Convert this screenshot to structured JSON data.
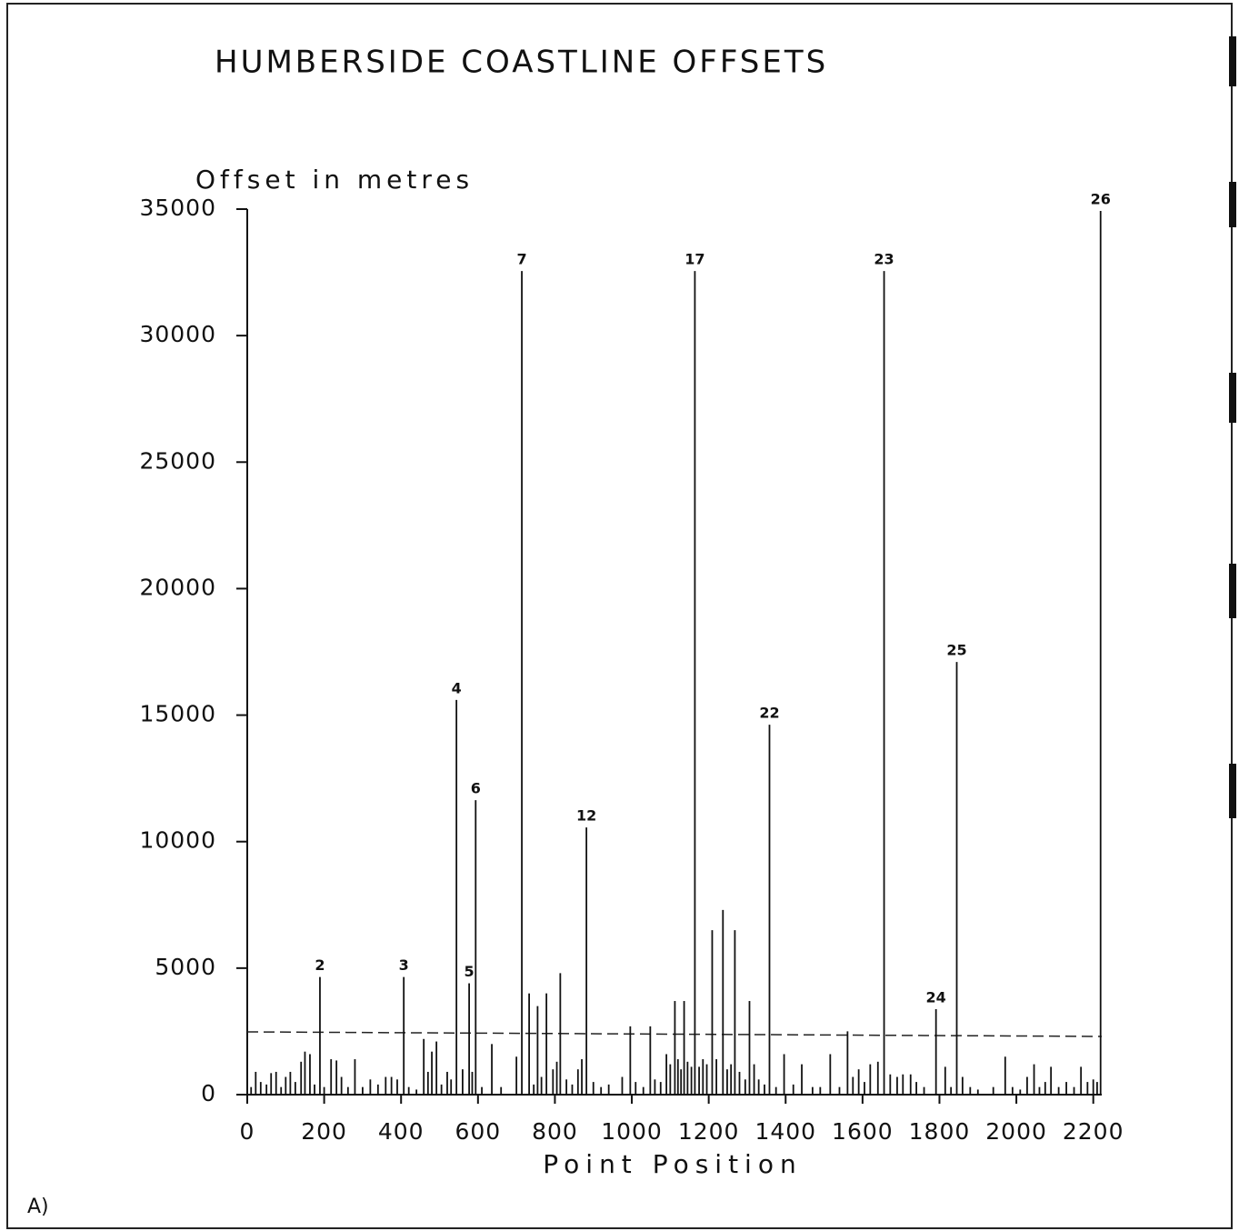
{
  "chart_data": {
    "type": "spike",
    "title": "HUMBERSIDE COASTLINE OFFSETS",
    "y_label": "Offset in metres",
    "x_label": "Point Position",
    "panel_label": "A)",
    "color": "#111111",
    "xlim": [
      0,
      2222
    ],
    "ylim": [
      0,
      35000
    ],
    "xticks": [
      0,
      200,
      400,
      600,
      800,
      1000,
      1200,
      1400,
      1600,
      1800,
      2000,
      2200
    ],
    "yticks": [
      0,
      5000,
      10000,
      15000,
      20000,
      25000,
      30000,
      35000
    ],
    "threshold": {
      "x": [
        0,
        2222
      ],
      "values": [
        2480,
        2300
      ],
      "color": "#222222"
    },
    "points": [
      {
        "x": 10,
        "value": 300
      },
      {
        "x": 22,
        "value": 900
      },
      {
        "x": 35,
        "value": 500
      },
      {
        "x": 50,
        "value": 400
      },
      {
        "x": 62,
        "value": 850
      },
      {
        "x": 75,
        "value": 900
      },
      {
        "x": 88,
        "value": 300
      },
      {
        "x": 100,
        "value": 700
      },
      {
        "x": 112,
        "value": 900
      },
      {
        "x": 125,
        "value": 500
      },
      {
        "x": 140,
        "value": 1300
      },
      {
        "x": 150,
        "value": 1700
      },
      {
        "x": 163,
        "value": 1600
      },
      {
        "x": 175,
        "value": 400
      },
      {
        "x": 189,
        "value": 4650,
        "label": "2"
      },
      {
        "x": 200,
        "value": 300
      },
      {
        "x": 218,
        "value": 1400
      },
      {
        "x": 232,
        "value": 1350
      },
      {
        "x": 245,
        "value": 700
      },
      {
        "x": 262,
        "value": 300
      },
      {
        "x": 280,
        "value": 1400
      },
      {
        "x": 300,
        "value": 300
      },
      {
        "x": 320,
        "value": 600
      },
      {
        "x": 340,
        "value": 400
      },
      {
        "x": 360,
        "value": 700
      },
      {
        "x": 375,
        "value": 700
      },
      {
        "x": 390,
        "value": 600
      },
      {
        "x": 407,
        "value": 4650,
        "label": "3"
      },
      {
        "x": 420,
        "value": 300
      },
      {
        "x": 440,
        "value": 200
      },
      {
        "x": 459,
        "value": 2200
      },
      {
        "x": 470,
        "value": 900
      },
      {
        "x": 480,
        "value": 1700
      },
      {
        "x": 492,
        "value": 2100
      },
      {
        "x": 505,
        "value": 400
      },
      {
        "x": 520,
        "value": 900
      },
      {
        "x": 530,
        "value": 600
      },
      {
        "x": 544,
        "value": 15600,
        "label": "4"
      },
      {
        "x": 560,
        "value": 1000
      },
      {
        "x": 577,
        "value": 4400,
        "label": "5"
      },
      {
        "x": 585,
        "value": 900
      },
      {
        "x": 594,
        "value": 11640,
        "label": "6"
      },
      {
        "x": 610,
        "value": 300
      },
      {
        "x": 636,
        "value": 2000
      },
      {
        "x": 660,
        "value": 300
      },
      {
        "x": 700,
        "value": 1500
      },
      {
        "x": 714,
        "value": 32550,
        "label": "7"
      },
      {
        "x": 733,
        "value": 4000
      },
      {
        "x": 745,
        "value": 400
      },
      {
        "x": 755,
        "value": 3500
      },
      {
        "x": 765,
        "value": 700
      },
      {
        "x": 778,
        "value": 4000
      },
      {
        "x": 795,
        "value": 1000
      },
      {
        "x": 805,
        "value": 1300
      },
      {
        "x": 814,
        "value": 4800
      },
      {
        "x": 830,
        "value": 600
      },
      {
        "x": 845,
        "value": 400
      },
      {
        "x": 860,
        "value": 1000
      },
      {
        "x": 870,
        "value": 1400
      },
      {
        "x": 882,
        "value": 10560,
        "label": "12"
      },
      {
        "x": 900,
        "value": 500
      },
      {
        "x": 920,
        "value": 300
      },
      {
        "x": 940,
        "value": 400
      },
      {
        "x": 975,
        "value": 700
      },
      {
        "x": 996,
        "value": 2700
      },
      {
        "x": 1010,
        "value": 500
      },
      {
        "x": 1030,
        "value": 300
      },
      {
        "x": 1048,
        "value": 2700
      },
      {
        "x": 1060,
        "value": 600
      },
      {
        "x": 1075,
        "value": 500
      },
      {
        "x": 1090,
        "value": 1600
      },
      {
        "x": 1100,
        "value": 1200
      },
      {
        "x": 1112,
        "value": 3700
      },
      {
        "x": 1120,
        "value": 1400
      },
      {
        "x": 1128,
        "value": 1000
      },
      {
        "x": 1136,
        "value": 3700
      },
      {
        "x": 1145,
        "value": 1300
      },
      {
        "x": 1155,
        "value": 1100
      },
      {
        "x": 1164,
        "value": 32550,
        "label": "17"
      },
      {
        "x": 1175,
        "value": 1100
      },
      {
        "x": 1185,
        "value": 1400
      },
      {
        "x": 1195,
        "value": 1200
      },
      {
        "x": 1209,
        "value": 6500
      },
      {
        "x": 1220,
        "value": 1400
      },
      {
        "x": 1237,
        "value": 7300
      },
      {
        "x": 1248,
        "value": 1000
      },
      {
        "x": 1258,
        "value": 1200
      },
      {
        "x": 1268,
        "value": 6500
      },
      {
        "x": 1280,
        "value": 900
      },
      {
        "x": 1295,
        "value": 600
      },
      {
        "x": 1306,
        "value": 3700
      },
      {
        "x": 1318,
        "value": 1200
      },
      {
        "x": 1330,
        "value": 600
      },
      {
        "x": 1345,
        "value": 400
      },
      {
        "x": 1358,
        "value": 14620,
        "label": "22"
      },
      {
        "x": 1375,
        "value": 300
      },
      {
        "x": 1396,
        "value": 1600
      },
      {
        "x": 1420,
        "value": 400
      },
      {
        "x": 1442,
        "value": 1200
      },
      {
        "x": 1470,
        "value": 300
      },
      {
        "x": 1490,
        "value": 300
      },
      {
        "x": 1516,
        "value": 1600
      },
      {
        "x": 1540,
        "value": 300
      },
      {
        "x": 1561,
        "value": 2500
      },
      {
        "x": 1575,
        "value": 700
      },
      {
        "x": 1590,
        "value": 1000
      },
      {
        "x": 1605,
        "value": 500
      },
      {
        "x": 1620,
        "value": 1200
      },
      {
        "x": 1640,
        "value": 1300
      },
      {
        "x": 1656,
        "value": 32550,
        "label": "23"
      },
      {
        "x": 1672,
        "value": 800
      },
      {
        "x": 1690,
        "value": 700
      },
      {
        "x": 1705,
        "value": 800
      },
      {
        "x": 1725,
        "value": 800
      },
      {
        "x": 1740,
        "value": 500
      },
      {
        "x": 1760,
        "value": 300
      },
      {
        "x": 1791,
        "value": 3380,
        "label": "24"
      },
      {
        "x": 1815,
        "value": 1100
      },
      {
        "x": 1830,
        "value": 300
      },
      {
        "x": 1845,
        "value": 17100,
        "label": "25"
      },
      {
        "x": 1860,
        "value": 700
      },
      {
        "x": 1880,
        "value": 300
      },
      {
        "x": 1900,
        "value": 200
      },
      {
        "x": 1940,
        "value": 300
      },
      {
        "x": 1971,
        "value": 1500
      },
      {
        "x": 1990,
        "value": 300
      },
      {
        "x": 2010,
        "value": 200
      },
      {
        "x": 2028,
        "value": 700
      },
      {
        "x": 2046,
        "value": 1200
      },
      {
        "x": 2060,
        "value": 300
      },
      {
        "x": 2075,
        "value": 500
      },
      {
        "x": 2090,
        "value": 1100
      },
      {
        "x": 2110,
        "value": 300
      },
      {
        "x": 2130,
        "value": 500
      },
      {
        "x": 2150,
        "value": 300
      },
      {
        "x": 2168,
        "value": 1100
      },
      {
        "x": 2185,
        "value": 500
      },
      {
        "x": 2200,
        "value": 600
      },
      {
        "x": 2210,
        "value": 500
      },
      {
        "x": 2219,
        "value": 34930,
        "label": "26"
      }
    ]
  }
}
